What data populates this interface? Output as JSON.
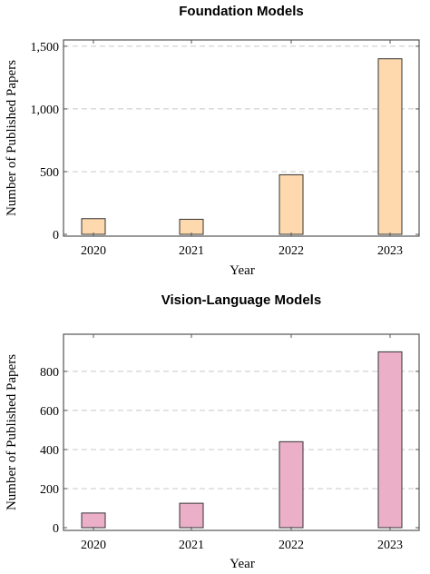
{
  "chart_data": [
    {
      "type": "bar",
      "title": "Foundation Models",
      "xlabel": "Year",
      "ylabel": "Number of Published Papers",
      "categories": [
        "2020",
        "2021",
        "2022",
        "2023"
      ],
      "values": [
        125,
        120,
        475,
        1400
      ],
      "ylim": [
        0,
        1550
      ],
      "yticks": [
        0,
        500,
        1000,
        1500
      ],
      "ytick_labels": [
        "0",
        "500",
        "1,000",
        "1,500"
      ],
      "bar_color": "#fdd9ad",
      "grid": true
    },
    {
      "type": "bar",
      "title": "Vision-Language Models",
      "xlabel": "Year",
      "ylabel": "Number of Published Papers",
      "categories": [
        "2020",
        "2021",
        "2022",
        "2023"
      ],
      "values": [
        75,
        125,
        440,
        900
      ],
      "ylim": [
        0,
        990
      ],
      "yticks": [
        0,
        200,
        400,
        600,
        800
      ],
      "ytick_labels": [
        "0",
        "200",
        "400",
        "600",
        "800"
      ],
      "bar_color": "#ebb0c8",
      "grid": true
    }
  ]
}
